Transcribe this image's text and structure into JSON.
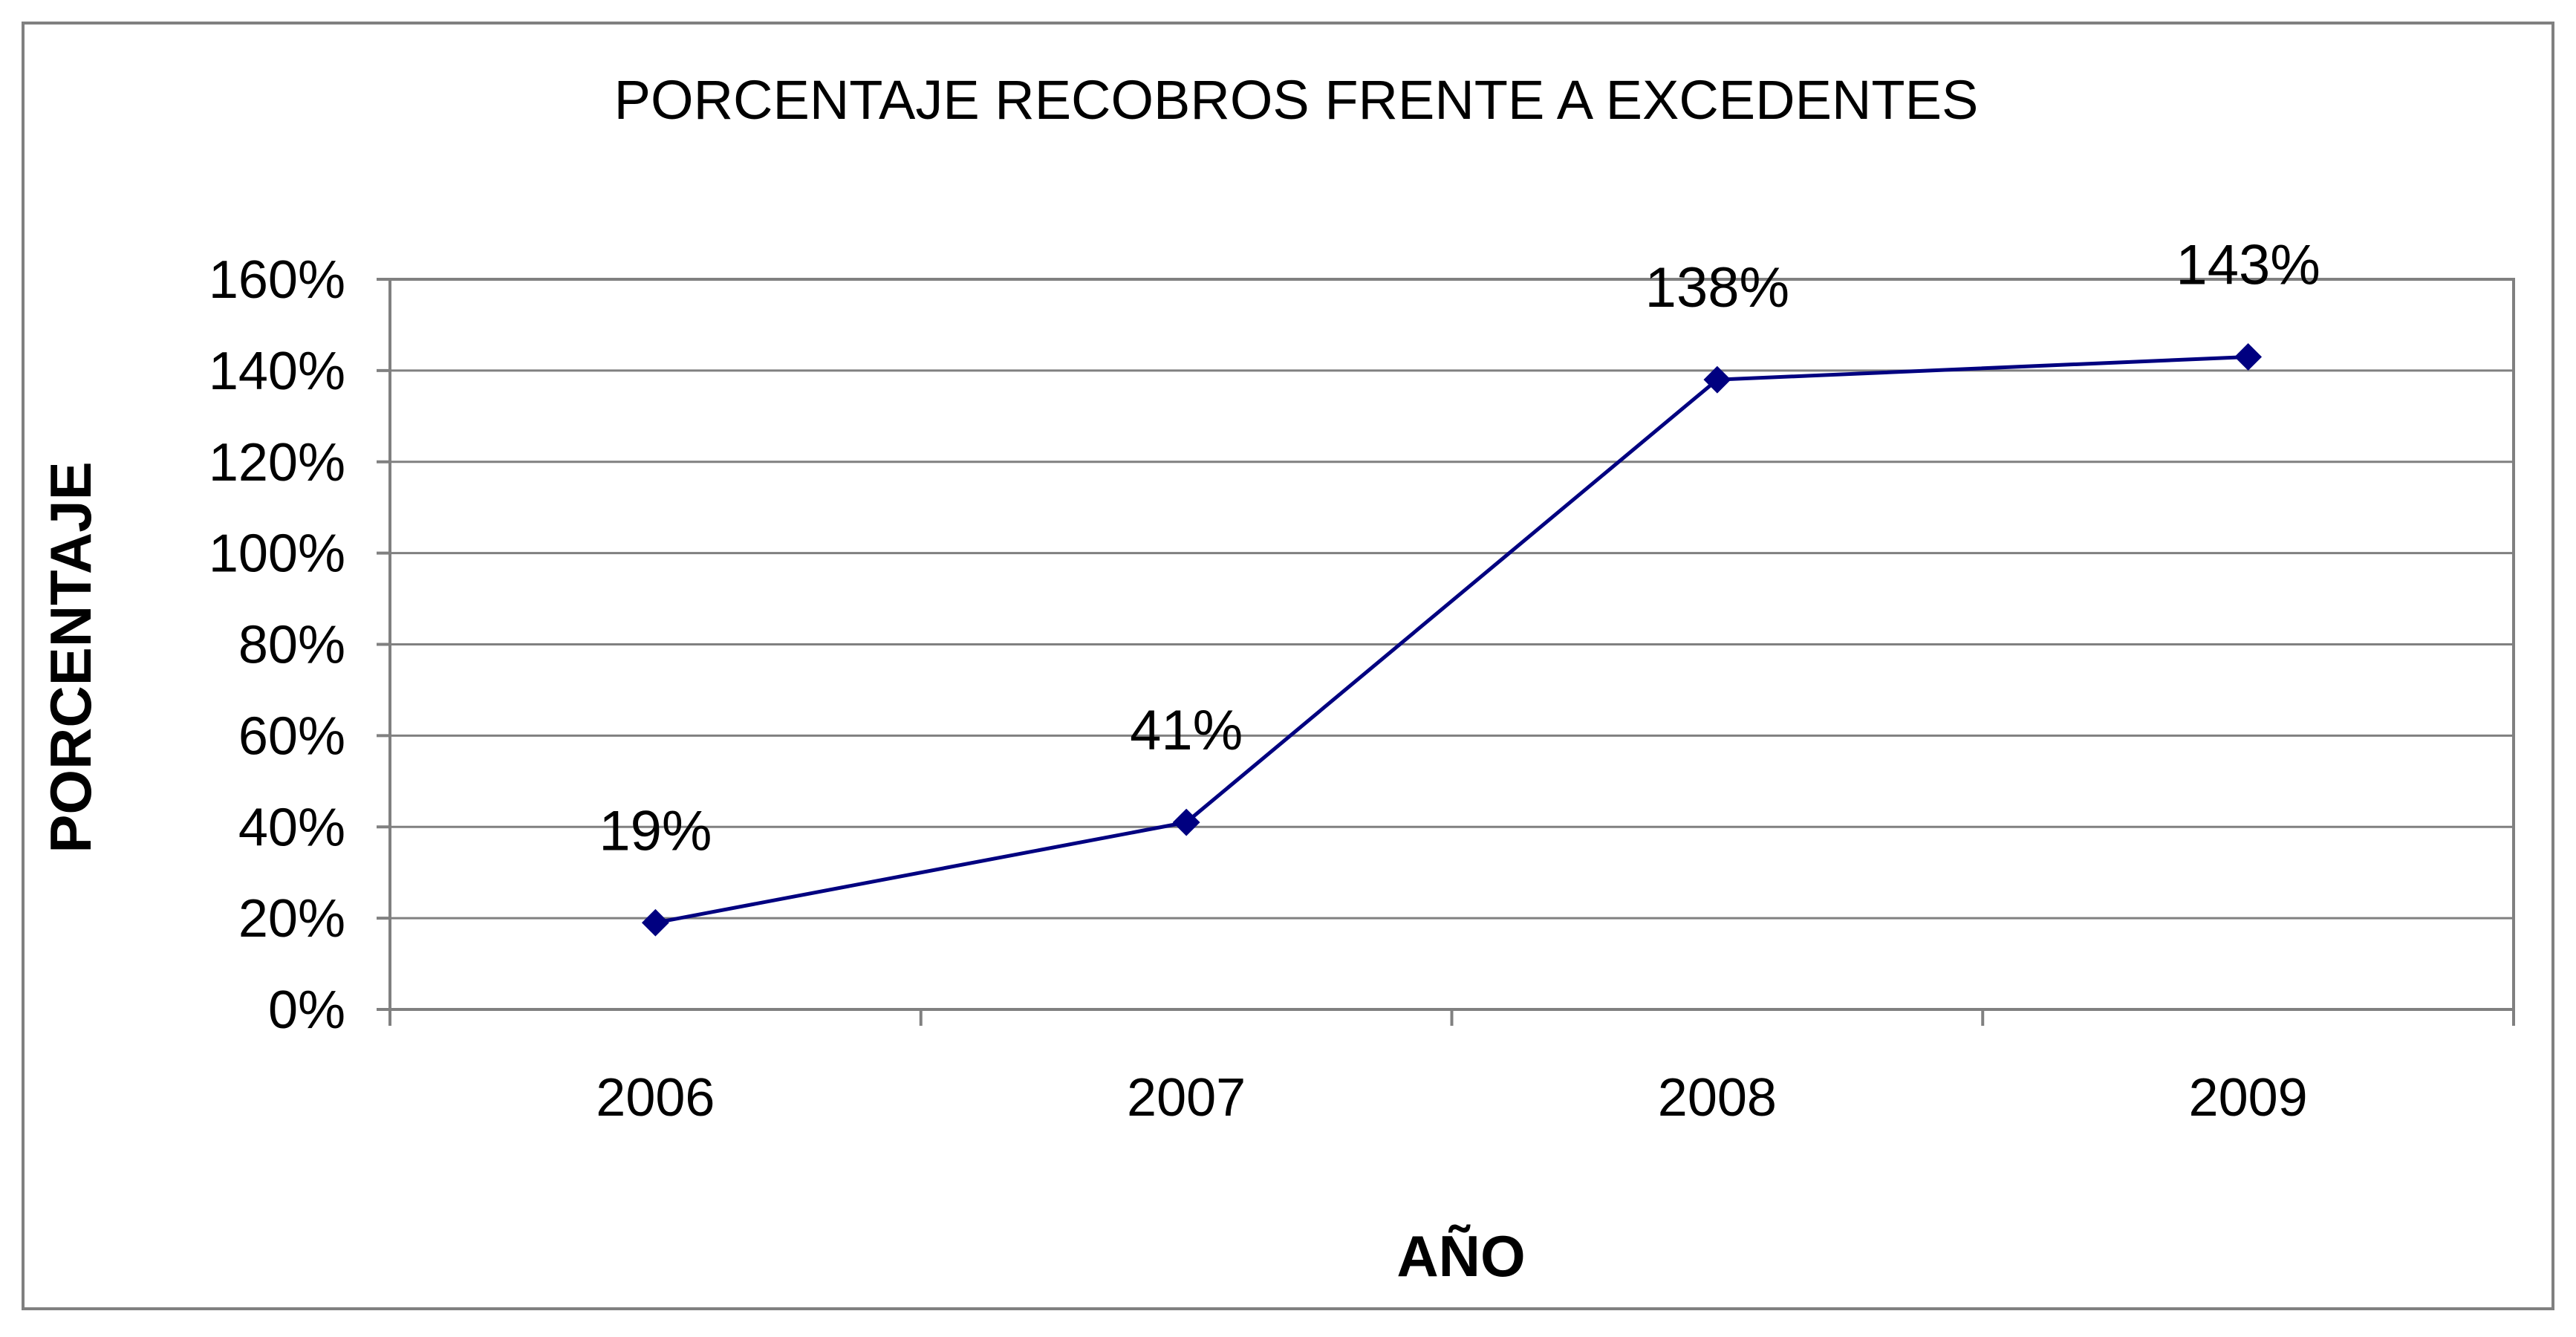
{
  "chart_data": {
    "type": "line",
    "title": "PORCENTAJE RECOBROS FRENTE A EXCEDENTES",
    "xlabel": "AÑO",
    "ylabel": "PORCENTAJE",
    "categories": [
      "2006",
      "2007",
      "2008",
      "2009"
    ],
    "series": [
      {
        "values": [
          19,
          41,
          138,
          143
        ],
        "data_labels": [
          "19%",
          "41%",
          "138%",
          "143%"
        ],
        "color": "#000080",
        "marker": "diamond"
      }
    ],
    "ylim": [
      0,
      160
    ],
    "yticks": [
      0,
      20,
      40,
      60,
      80,
      100,
      120,
      140,
      160
    ],
    "ytick_labels": [
      "0%",
      "20%",
      "40%",
      "60%",
      "80%",
      "100%",
      "120%",
      "140%",
      "160%"
    ],
    "grid": true,
    "legend": "none"
  }
}
